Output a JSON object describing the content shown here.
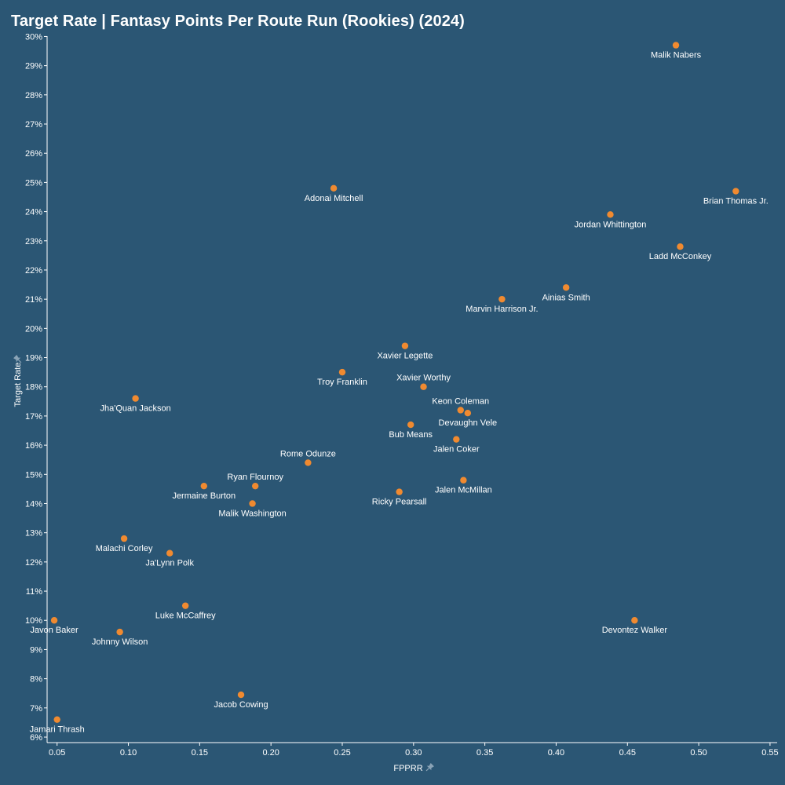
{
  "chart_data": {
    "type": "scatter",
    "title": "Target Rate | Fantasy Points Per Route Run (Rookies) (2024)",
    "xlabel": "FPPRR",
    "ylabel": "Target Rate",
    "xlim": [
      0.043,
      0.555
    ],
    "ylim": [
      0.06,
      0.302
    ],
    "x_ticks": [
      0.05,
      0.1,
      0.15,
      0.2,
      0.25,
      0.3,
      0.35,
      0.4,
      0.45,
      0.5,
      0.55
    ],
    "x_tick_labels": [
      "0.05",
      "0.10",
      "0.15",
      "0.20",
      "0.25",
      "0.30",
      "0.35",
      "0.40",
      "0.45",
      "0.50",
      "0.55"
    ],
    "y_ticks": [
      0.06,
      0.07,
      0.08,
      0.09,
      0.1,
      0.11,
      0.12,
      0.13,
      0.14,
      0.15,
      0.16,
      0.17,
      0.18,
      0.19,
      0.2,
      0.21,
      0.22,
      0.23,
      0.24,
      0.25,
      0.26,
      0.27,
      0.28,
      0.29,
      0.3
    ],
    "y_tick_labels": [
      "6%",
      "7%",
      "8%",
      "9%",
      "10%",
      "11%",
      "12%",
      "13%",
      "14%",
      "15%",
      "16%",
      "17%",
      "18%",
      "19%",
      "20%",
      "21%",
      "22%",
      "23%",
      "24%",
      "25%",
      "26%",
      "27%",
      "28%",
      "29%",
      "30%"
    ],
    "grid": false,
    "point_color": "#f08a30",
    "points": [
      {
        "name": "Malik Nabers",
        "x": 0.484,
        "y": 0.297,
        "label_pos": "below"
      },
      {
        "name": "Adonai Mitchell",
        "x": 0.244,
        "y": 0.248,
        "label_pos": "below"
      },
      {
        "name": "Brian Thomas Jr.",
        "x": 0.526,
        "y": 0.247,
        "label_pos": "below"
      },
      {
        "name": "Jordan Whittington",
        "x": 0.438,
        "y": 0.239,
        "label_pos": "below"
      },
      {
        "name": "Ladd McConkey",
        "x": 0.487,
        "y": 0.228,
        "label_pos": "below"
      },
      {
        "name": "Ainias Smith",
        "x": 0.407,
        "y": 0.214,
        "label_pos": "below"
      },
      {
        "name": "Marvin Harrison Jr.",
        "x": 0.362,
        "y": 0.21,
        "label_pos": "below"
      },
      {
        "name": "Xavier Legette",
        "x": 0.294,
        "y": 0.194,
        "label_pos": "below"
      },
      {
        "name": "Troy Franklin",
        "x": 0.25,
        "y": 0.185,
        "label_pos": "below"
      },
      {
        "name": "Xavier Worthy",
        "x": 0.307,
        "y": 0.18,
        "label_pos": "above"
      },
      {
        "name": "Jha'Quan Jackson",
        "x": 0.105,
        "y": 0.176,
        "label_pos": "below"
      },
      {
        "name": "Keon Coleman",
        "x": 0.333,
        "y": 0.172,
        "label_pos": "above"
      },
      {
        "name": "Devaughn Vele",
        "x": 0.338,
        "y": 0.171,
        "label_pos": "below"
      },
      {
        "name": "Bub Means",
        "x": 0.298,
        "y": 0.167,
        "label_pos": "below"
      },
      {
        "name": "Jalen Coker",
        "x": 0.33,
        "y": 0.162,
        "label_pos": "below"
      },
      {
        "name": "Rome Odunze",
        "x": 0.226,
        "y": 0.154,
        "label_pos": "above"
      },
      {
        "name": "Jalen McMillan",
        "x": 0.335,
        "y": 0.148,
        "label_pos": "below"
      },
      {
        "name": "Ryan Flournoy",
        "x": 0.189,
        "y": 0.146,
        "label_pos": "above"
      },
      {
        "name": "Jermaine Burton",
        "x": 0.153,
        "y": 0.146,
        "label_pos": "below"
      },
      {
        "name": "Ricky Pearsall",
        "x": 0.29,
        "y": 0.144,
        "label_pos": "below"
      },
      {
        "name": "Malik Washington",
        "x": 0.187,
        "y": 0.14,
        "label_pos": "below"
      },
      {
        "name": "Malachi Corley",
        "x": 0.097,
        "y": 0.128,
        "label_pos": "below"
      },
      {
        "name": "Ja'Lynn Polk",
        "x": 0.129,
        "y": 0.123,
        "label_pos": "below"
      },
      {
        "name": "Luke McCaffrey",
        "x": 0.14,
        "y": 0.105,
        "label_pos": "below"
      },
      {
        "name": "Javon Baker",
        "x": 0.048,
        "y": 0.1,
        "label_pos": "below"
      },
      {
        "name": "Devontez Walker",
        "x": 0.455,
        "y": 0.1,
        "label_pos": "below"
      },
      {
        "name": "Johnny Wilson",
        "x": 0.094,
        "y": 0.096,
        "label_pos": "below"
      },
      {
        "name": "Jacob Cowing",
        "x": 0.179,
        "y": 0.0745,
        "label_pos": "below"
      },
      {
        "name": "Jamari Thrash",
        "x": 0.05,
        "y": 0.066,
        "label_pos": "below"
      }
    ]
  },
  "ui": {
    "x_axis_pin_icon": "pin-icon",
    "y_axis_pin_icon": "pin-icon"
  }
}
